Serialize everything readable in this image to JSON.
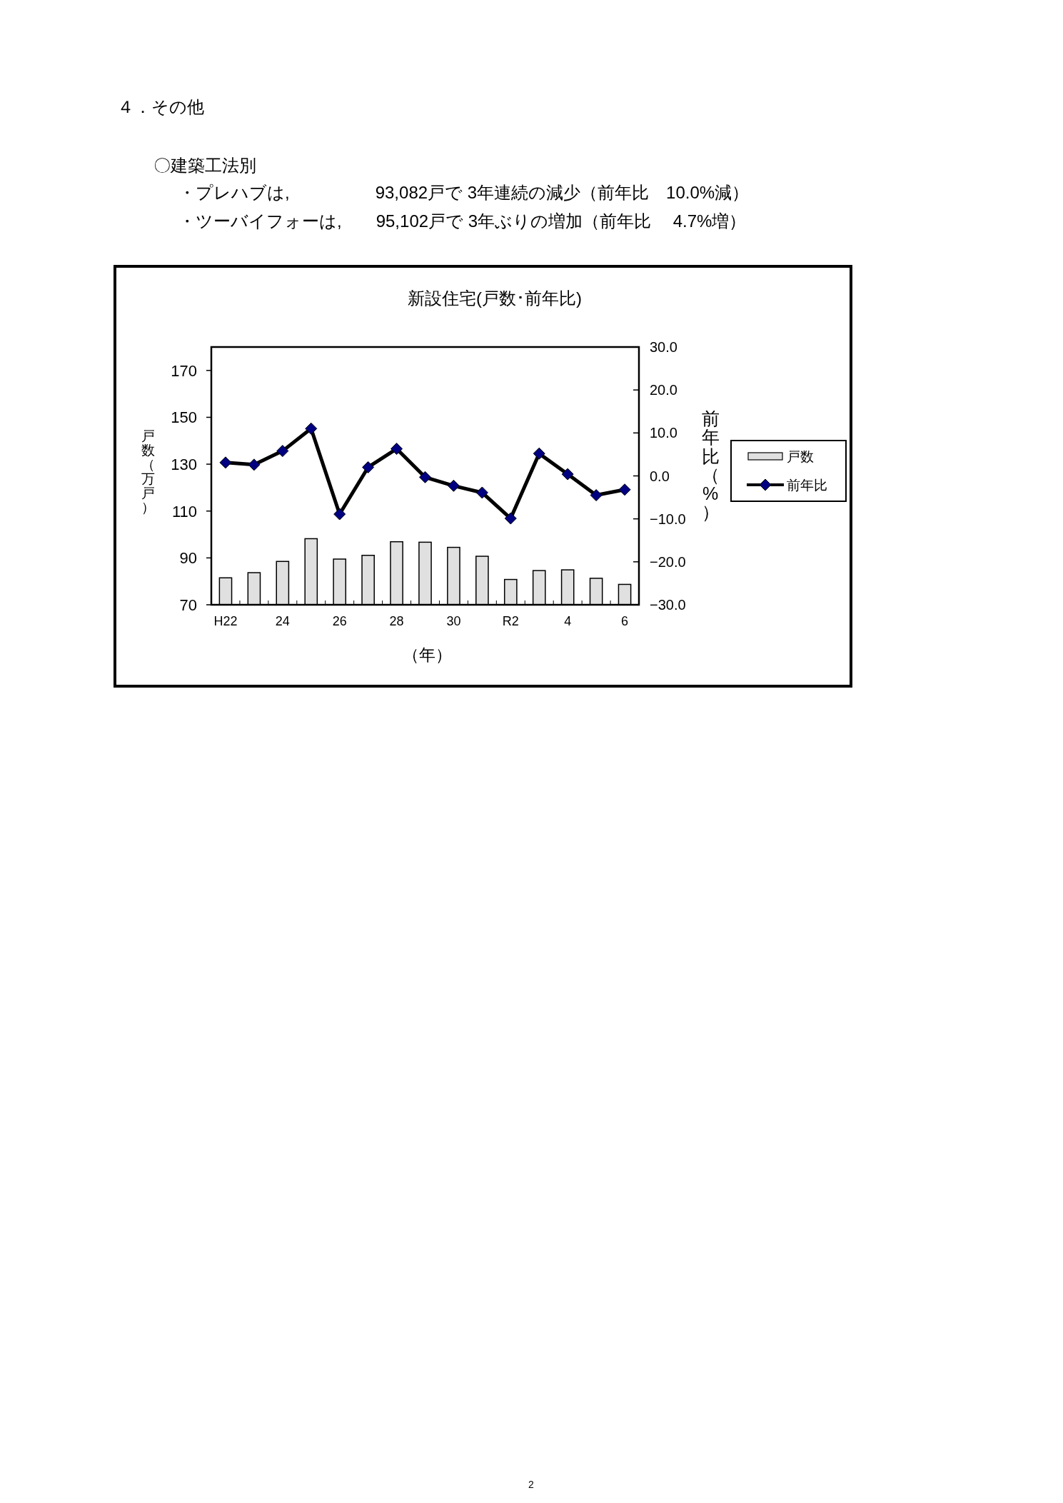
{
  "chart_data": {
    "type": "bar",
    "title": "新設住宅(戸数･前年比)",
    "xlabel": "（年）",
    "ylabel": "戸数（万戸）",
    "y2label": "前年比（%）",
    "annotations": [
      "４．その他",
      "〇建築工法別",
      "・プレハブは,　　　　　93,082戸で 3年連続の減少（前年比　10.0%減）",
      "・ツーバイフォーは,　　95,102戸で 3年ぶりの増加（前年比　 4.7%増）",
      "2"
    ],
    "categories": [
      "H22",
      null,
      "24",
      null,
      "26",
      null,
      "28",
      null,
      "30",
      null,
      "R2",
      null,
      "4",
      null,
      "6"
    ],
    "series": [
      {
        "name": "戸数",
        "color": "#e0e0e0",
        "values": [
          81.5,
          83.7,
          88.5,
          98.2,
          89.5,
          91.1,
          96.9,
          96.7,
          94.5,
          90.7,
          80.8,
          84.6,
          84.9,
          81.3,
          78.7
        ]
      },
      {
        "name": "前年比",
        "type": "line",
        "axis": "y2",
        "color": "#000000",
        "values": [
          3.1,
          2.6,
          5.8,
          11.0,
          -8.9,
          2.0,
          6.3,
          -0.3,
          -2.3,
          -3.9,
          -9.9,
          5.2,
          0.4,
          -4.5,
          -3.2
        ]
      }
    ],
    "ylim": [
      70,
      180
    ],
    "yticks": [
      70,
      90,
      110,
      130,
      150,
      170
    ],
    "y2lim": [
      -30,
      30
    ],
    "y2ticks": [
      {
        "value": -30,
        "label": "−30.0"
      },
      {
        "value": -20,
        "label": "−20.0"
      },
      {
        "value": -10,
        "label": "−10.0"
      },
      {
        "value": 0,
        "label": "0.0"
      },
      {
        "value": 10,
        "label": "10.0"
      },
      {
        "value": 20,
        "label": "20.0"
      },
      {
        "value": 30,
        "label": "30.0"
      }
    ],
    "marker": "diamond",
    "legend": "right",
    "grid": false
  }
}
